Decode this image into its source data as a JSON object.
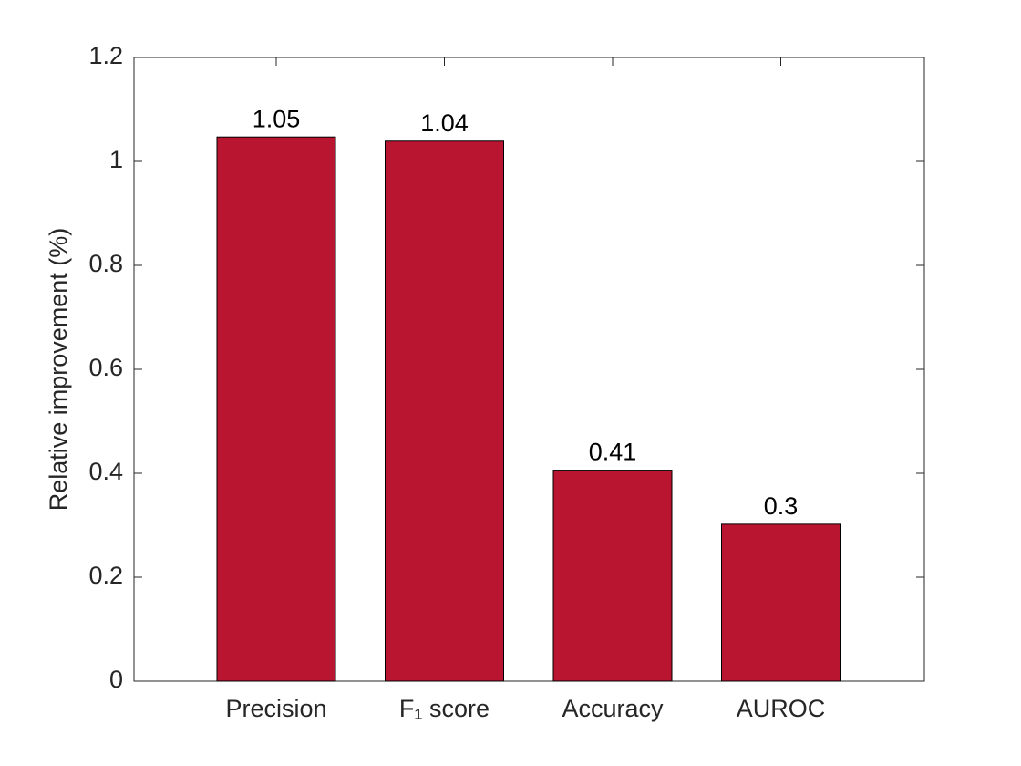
{
  "chart_data": {
    "type": "bar",
    "y_label": "Relative improvement (%)",
    "categories": [
      "Precision",
      "F₁ score",
      "Accuracy",
      "AUROC"
    ],
    "values": [
      1.047,
      1.039,
      0.406,
      0.302
    ],
    "value_labels": [
      "1.05",
      "1.04",
      "0.41",
      "0.3"
    ],
    "color": "#ba1530",
    "ylim": [
      0,
      1.2
    ],
    "yticks": [
      0,
      0.2,
      0.4,
      0.6,
      0.8,
      1,
      1.2
    ],
    "grid": false
  }
}
